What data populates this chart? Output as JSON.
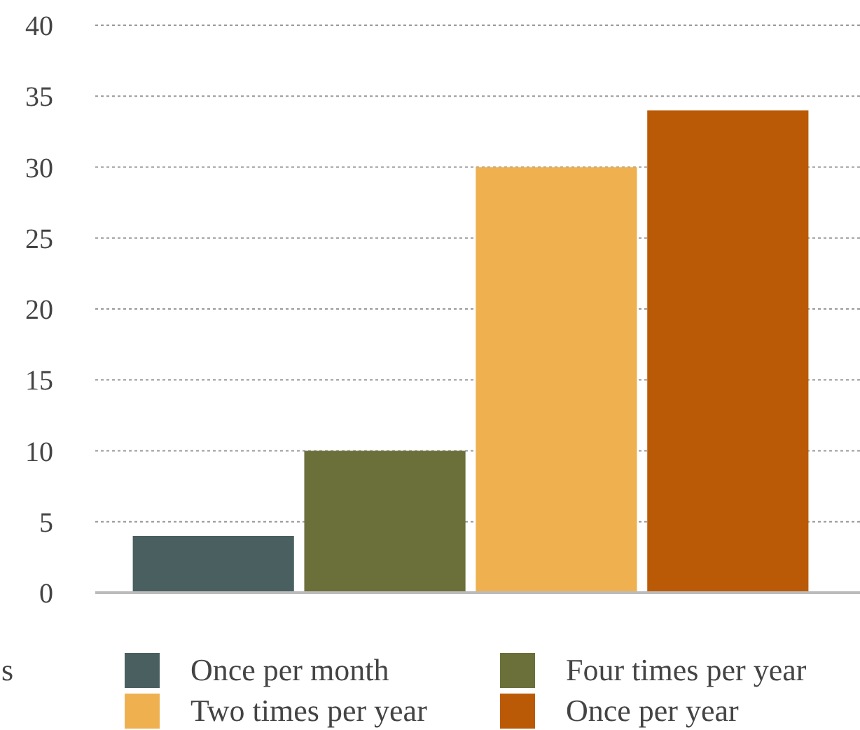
{
  "chart_data": {
    "type": "bar",
    "categories": [
      null
    ],
    "series": [
      {
        "name": "Once per month",
        "color": "#4a5f60",
        "values": [
          4
        ]
      },
      {
        "name": "Four times per year",
        "color": "#6b6f3a",
        "values": [
          10
        ]
      },
      {
        "name": "Two times per year",
        "color": "#efb150",
        "values": [
          30
        ]
      },
      {
        "name": "Once per year",
        "color": "#bb5a06",
        "values": [
          34
        ]
      }
    ],
    "ylim": [
      0,
      40
    ],
    "yticks": [
      0,
      5,
      10,
      15,
      20,
      25,
      30,
      35,
      40
    ],
    "grid": "y",
    "legend": "bottom",
    "annotations": [
      "s"
    ]
  }
}
